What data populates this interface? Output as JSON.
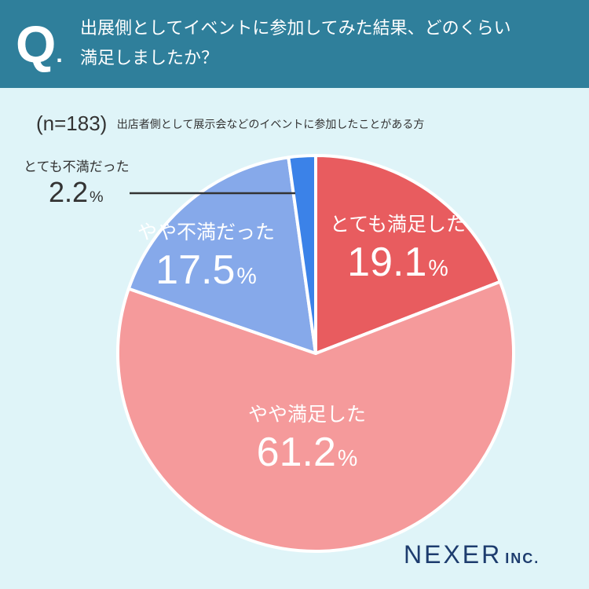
{
  "header": {
    "badge": "Q",
    "badge_dot": ".",
    "question_line1": "出展側としてイベントに参加してみた結果、どのくらい",
    "question_line2": "満足しましたか？"
  },
  "sample": {
    "n_label": "(n=183)",
    "description": "出店者側として展示会などのイベントに参加したことがある方"
  },
  "chart_data": {
    "type": "pie",
    "start": "12 o'clock",
    "direction": "clockwise",
    "slices": [
      {
        "label": "とても満足した",
        "value": 19.1,
        "display": "19.1",
        "color": "#e85c5f"
      },
      {
        "label": "やや満足した",
        "value": 61.2,
        "display": "61.2",
        "color": "#f59a9b"
      },
      {
        "label": "やや不満だった",
        "value": 17.5,
        "display": "17.5",
        "color": "#86a9ea"
      },
      {
        "label": "とても不満だった",
        "value": 2.2,
        "display": "2.2",
        "color": "#3b82e8"
      }
    ],
    "unit": "%"
  },
  "logo": {
    "name": "NEXER",
    "suffix": "INC."
  }
}
